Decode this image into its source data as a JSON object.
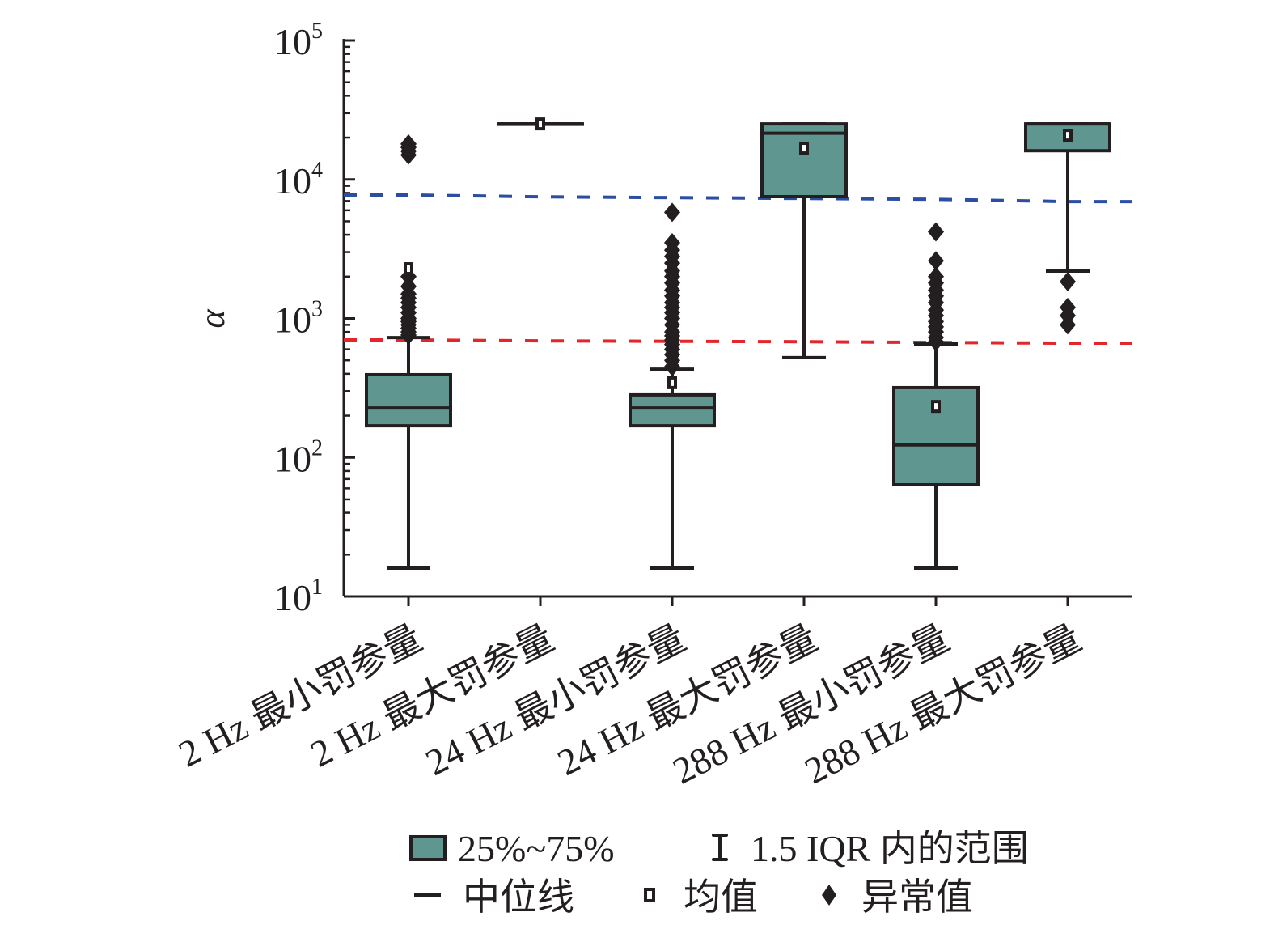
{
  "chart_data": {
    "type": "box",
    "xlabel": "",
    "ylabel": "α",
    "yscale": "log",
    "ylim": [
      10,
      100000
    ],
    "ytick_labels": [
      {
        "base": "10",
        "exp": "1"
      },
      {
        "base": "10",
        "exp": "2"
      },
      {
        "base": "10",
        "exp": "3"
      },
      {
        "base": "10",
        "exp": "4"
      },
      {
        "base": "10",
        "exp": "5"
      }
    ],
    "categories": [
      "2 Hz 最小罚参量",
      "2 Hz 最大罚参量",
      "24 Hz 最小罚参量",
      "24 Hz 最大罚参量",
      "288 Hz 最小罚参量",
      "288 Hz 最大罚参量"
    ],
    "boxes": [
      {
        "q1": 169,
        "median": 227,
        "q3": 394,
        "whisker_low": 16,
        "whisker_high": 729,
        "mean": 2280,
        "outliers": [
          760,
          800,
          850,
          900,
          950,
          1000,
          1100,
          1200,
          1300,
          1400,
          1500,
          1700,
          2000,
          15000,
          16000,
          17000,
          18000
        ]
      },
      {
        "q1": 25100,
        "median": 25100,
        "q3": 25100,
        "whisker_low": 25100,
        "whisker_high": 25100,
        "mean": 25100,
        "outliers": []
      },
      {
        "q1": 169,
        "median": 227,
        "q3": 282,
        "whisker_low": 16,
        "whisker_high": 432,
        "mean": 345,
        "outliers": [
          450,
          500,
          550,
          600,
          650,
          700,
          750,
          800,
          900,
          1000,
          1100,
          1200,
          1300,
          1450,
          1600,
          1800,
          2000,
          2200,
          2500,
          2800,
          3100,
          3500,
          5800
        ]
      },
      {
        "q1": 7520,
        "median": 21500,
        "q3": 25100,
        "whisker_low": 523,
        "whisker_high": 25100,
        "mean": 16800,
        "outliers": []
      },
      {
        "q1": 63.6,
        "median": 123,
        "q3": 318,
        "whisker_low": 16,
        "whisker_high": 656,
        "mean": 233,
        "outliers": [
          680,
          730,
          800,
          870,
          950,
          1050,
          1150,
          1300,
          1450,
          1600,
          1800,
          2000,
          2600,
          4200
        ]
      },
      {
        "q1": 16100,
        "median": 25100,
        "q3": 25100,
        "whisker_low": 2190,
        "whisker_high": 25100,
        "mean": 20800,
        "outliers": [
          900,
          1050,
          1200,
          1840
        ]
      }
    ],
    "reference_lines": [
      {
        "color": "#2b4ea2",
        "style": "dashed",
        "values": [
          7730,
          7500,
          7400,
          7300,
          7200,
          6930
        ]
      },
      {
        "color": "#e3262b",
        "style": "dashed",
        "values": [
          701,
          690,
          685,
          680,
          672,
          664
        ]
      }
    ],
    "box_fill": "#5f9690",
    "legend": {
      "placement": "bottom",
      "items": [
        {
          "marker": "box",
          "label": "25%~75%"
        },
        {
          "marker": "whisker",
          "label": "1.5 IQR 内的范围"
        },
        {
          "marker": "median-line",
          "label": "中位线"
        },
        {
          "marker": "mean-square",
          "label": "均值"
        },
        {
          "marker": "diamond",
          "label": "异常值"
        }
      ]
    }
  }
}
